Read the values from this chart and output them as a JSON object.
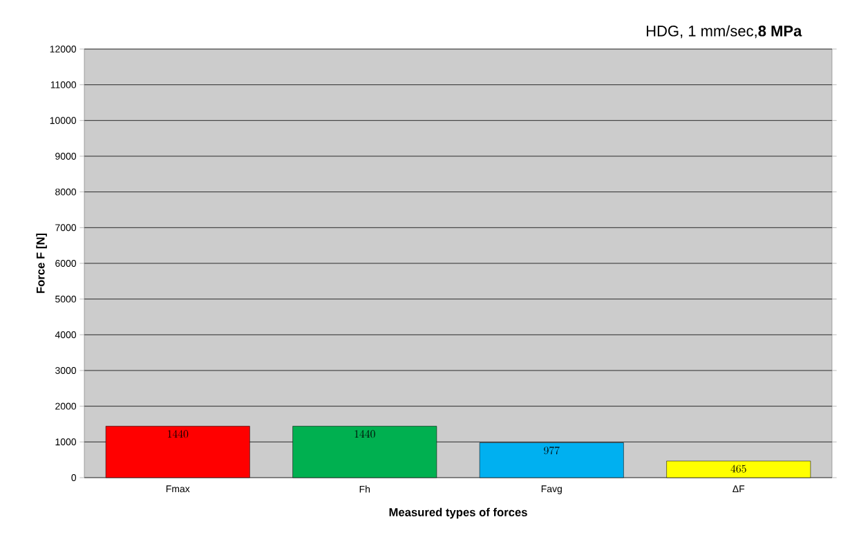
{
  "chart_data": {
    "type": "bar",
    "title": "HDG, 1 mm/sec,**8 MPa**",
    "xlabel": "Measured types of forces",
    "ylabel": "Force F [N]",
    "categories": [
      "Fmax",
      "Fh",
      "Favg",
      "ΔF"
    ],
    "values": [
      1440,
      1440,
      977,
      465
    ],
    "colors": [
      "#ff0000",
      "#00b050",
      "#00b0f0",
      "#ffff00"
    ],
    "ylim": [
      0,
      12000
    ],
    "yticks": [
      0,
      1000,
      2000,
      3000,
      4000,
      5000,
      6000,
      7000,
      8000,
      9000,
      10000,
      11000,
      12000
    ],
    "grid": "y",
    "data_labels": true
  }
}
